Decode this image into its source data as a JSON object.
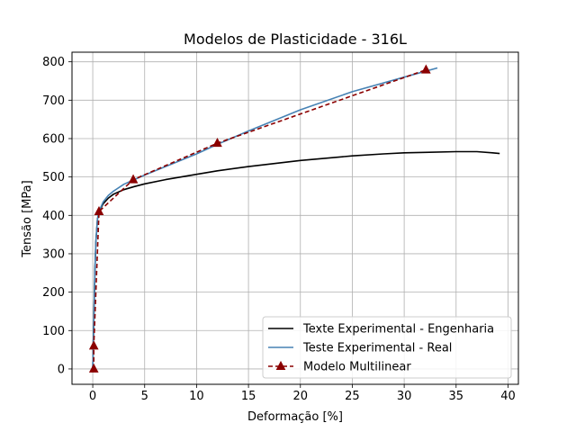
{
  "chart_data": {
    "type": "line",
    "title": "Modelos de Plasticidade - 316L",
    "xlabel": "Deformação [%]",
    "ylabel": "Tensão [MPa]",
    "xlim": [
      -2,
      41
    ],
    "ylim": [
      -40,
      825
    ],
    "xticks": [
      0,
      5,
      10,
      15,
      20,
      25,
      30,
      35,
      40
    ],
    "yticks": [
      0,
      100,
      200,
      300,
      400,
      500,
      600,
      700,
      800
    ],
    "grid": true,
    "legend_position": "lower right",
    "series": [
      {
        "name": "Texte Experimental - Engenharia",
        "color": "#000000",
        "style": "solid",
        "marker": "none",
        "points": [
          [
            0,
            0
          ],
          [
            0.05,
            60
          ],
          [
            0.12,
            150
          ],
          [
            0.2,
            250
          ],
          [
            0.3,
            330
          ],
          [
            0.45,
            390
          ],
          [
            0.6,
            410
          ],
          [
            1,
            430
          ],
          [
            1.5,
            445
          ],
          [
            2,
            455
          ],
          [
            3,
            467
          ],
          [
            4,
            475
          ],
          [
            5,
            482
          ],
          [
            7,
            493
          ],
          [
            10,
            507
          ],
          [
            12,
            516
          ],
          [
            15,
            527
          ],
          [
            20,
            543
          ],
          [
            25,
            555
          ],
          [
            28,
            560
          ],
          [
            30,
            563
          ],
          [
            32,
            564
          ],
          [
            35,
            566
          ],
          [
            37,
            566
          ],
          [
            38.5,
            563
          ],
          [
            39.2,
            561
          ]
        ]
      },
      {
        "name": "Teste Experimental - Real",
        "color": "#4682b4",
        "style": "solid",
        "marker": "none",
        "points": [
          [
            0,
            0
          ],
          [
            0.05,
            60
          ],
          [
            0.12,
            150
          ],
          [
            0.2,
            250
          ],
          [
            0.3,
            330
          ],
          [
            0.45,
            390
          ],
          [
            0.6,
            410
          ],
          [
            1,
            435
          ],
          [
            1.5,
            452
          ],
          [
            2,
            463
          ],
          [
            3,
            481
          ],
          [
            4,
            493
          ],
          [
            5,
            505
          ],
          [
            7,
            527
          ],
          [
            10,
            560
          ],
          [
            12,
            585
          ],
          [
            15,
            620
          ],
          [
            20,
            675
          ],
          [
            25,
            722
          ],
          [
            30,
            760
          ],
          [
            32,
            775
          ],
          [
            33.2,
            784
          ]
        ]
      },
      {
        "name": "Modelo Multilinear",
        "color": "#8b0000",
        "style": "dashed",
        "marker": "triangle-up",
        "points": [
          [
            0.1,
            0
          ],
          [
            0.1,
            60
          ],
          [
            0.6,
            410
          ],
          [
            3.9,
            493
          ],
          [
            12,
            588
          ],
          [
            32.1,
            779
          ]
        ]
      }
    ]
  }
}
